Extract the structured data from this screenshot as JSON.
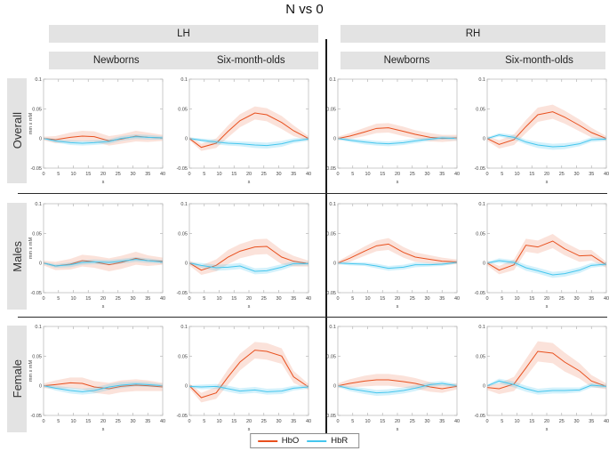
{
  "title": "N vs 0",
  "headers": {
    "lh": "LH",
    "rh": "RH",
    "newborns": "Newborns",
    "six_month": "Six-month-olds"
  },
  "rows": [
    {
      "label": "Overall"
    },
    {
      "label": "Males"
    },
    {
      "label": "Female"
    }
  ],
  "legend": [
    {
      "label": "HbO",
      "color": "#e8501e"
    },
    {
      "label": "HbR",
      "color": "#45c6ee"
    }
  ],
  "colors": {
    "header_bar": "#e3e3e3",
    "hbo_line": "#e8501e",
    "hbo_band": "rgba(235,110,70,0.20)",
    "hbr_line": "#45c6ee",
    "hbr_band": "rgba(80,200,240,0.25)",
    "axis": "#b5b5b5",
    "tick_text": "#444444",
    "divider": "#1a1a1a"
  },
  "chart_data": {
    "type": "line",
    "title": "N vs 0",
    "xlabel": "s",
    "ylabel": "mm x mM",
    "xlim": [
      0,
      40
    ],
    "ylim": [
      -0.05,
      0.1
    ],
    "xticks": [
      0,
      5,
      10,
      15,
      20,
      25,
      30,
      35,
      40
    ],
    "yticks": [
      0.1,
      0.05,
      0,
      -0.05
    ],
    "ytick_labels": [
      "0.1",
      "0.05",
      "0",
      "-0.05"
    ],
    "grid": false,
    "legend_position": "bottom-center",
    "series_names": [
      "HbO",
      "HbR"
    ],
    "x": [
      0,
      4,
      9,
      13,
      17,
      22,
      26,
      31,
      35,
      40
    ],
    "panels": [
      {
        "row": "Overall",
        "hemisphere": "LH",
        "group": "Newborns",
        "HbO": {
          "values": [
            0,
            -0.002,
            0.002,
            0.004,
            0.003,
            -0.004,
            -0.001,
            0.004,
            0.002,
            0.001
          ],
          "band": [
            0.003,
            0.006,
            0.008,
            0.009,
            0.009,
            0.008,
            0.008,
            0.009,
            0.008,
            0.005
          ]
        },
        "HbR": {
          "values": [
            0,
            -0.004,
            -0.007,
            -0.008,
            -0.007,
            -0.005,
            0.0,
            0.003,
            0.002,
            0.001
          ],
          "band": [
            0.002,
            0.003,
            0.004,
            0.004,
            0.004,
            0.004,
            0.004,
            0.004,
            0.004,
            0.003
          ]
        }
      },
      {
        "row": "Overall",
        "hemisphere": "LH",
        "group": "Six-month-olds",
        "HbO": {
          "values": [
            0,
            -0.015,
            -0.008,
            0.012,
            0.03,
            0.043,
            0.04,
            0.027,
            0.013,
            0.0
          ],
          "band": [
            0.003,
            0.006,
            0.008,
            0.01,
            0.011,
            0.011,
            0.011,
            0.011,
            0.009,
            0.004
          ]
        },
        "HbR": {
          "values": [
            0,
            -0.003,
            -0.006,
            -0.008,
            -0.009,
            -0.011,
            -0.012,
            -0.009,
            -0.004,
            -0.001
          ],
          "band": [
            0.002,
            0.003,
            0.004,
            0.004,
            0.004,
            0.005,
            0.005,
            0.005,
            0.004,
            0.003
          ]
        }
      },
      {
        "row": "Overall",
        "hemisphere": "RH",
        "group": "Newborns",
        "HbO": {
          "values": [
            0,
            0.004,
            0.011,
            0.017,
            0.018,
            0.012,
            0.007,
            0.002,
            0.0,
            0.001
          ],
          "band": [
            0.003,
            0.005,
            0.007,
            0.008,
            0.008,
            0.008,
            0.007,
            0.007,
            0.006,
            0.005
          ]
        },
        "HbR": {
          "values": [
            0,
            -0.003,
            -0.006,
            -0.008,
            -0.009,
            -0.007,
            -0.004,
            -0.001,
            0.001,
            0.0
          ],
          "band": [
            0.002,
            0.003,
            0.004,
            0.004,
            0.004,
            0.004,
            0.004,
            0.003,
            0.003,
            0.003
          ]
        }
      },
      {
        "row": "Overall",
        "hemisphere": "RH",
        "group": "Six-month-olds",
        "HbO": {
          "values": [
            0,
            -0.01,
            -0.002,
            0.02,
            0.04,
            0.045,
            0.036,
            0.022,
            0.01,
            0.0
          ],
          "band": [
            0.004,
            0.007,
            0.009,
            0.011,
            0.012,
            0.012,
            0.011,
            0.01,
            0.008,
            0.004
          ]
        },
        "HbR": {
          "values": [
            0,
            0.006,
            0.002,
            -0.006,
            -0.011,
            -0.014,
            -0.013,
            -0.009,
            -0.002,
            -0.001
          ],
          "band": [
            0.002,
            0.003,
            0.004,
            0.004,
            0.005,
            0.005,
            0.005,
            0.004,
            0.004,
            0.003
          ]
        }
      },
      {
        "row": "Males",
        "hemisphere": "LH",
        "group": "Newborns",
        "HbO": {
          "values": [
            0,
            -0.005,
            -0.002,
            0.004,
            0.002,
            -0.003,
            0.001,
            0.008,
            0.004,
            0.003
          ],
          "band": [
            0.004,
            0.007,
            0.009,
            0.01,
            0.01,
            0.011,
            0.011,
            0.011,
            0.009,
            0.006
          ]
        },
        "HbR": {
          "values": [
            0,
            -0.005,
            -0.003,
            0.001,
            0.002,
            0.001,
            0.003,
            0.006,
            0.004,
            0.002
          ],
          "band": [
            0.002,
            0.003,
            0.004,
            0.004,
            0.004,
            0.004,
            0.004,
            0.004,
            0.004,
            0.003
          ]
        }
      },
      {
        "row": "Males",
        "hemisphere": "LH",
        "group": "Six-month-olds",
        "HbO": {
          "values": [
            0,
            -0.012,
            -0.004,
            0.01,
            0.02,
            0.027,
            0.028,
            0.01,
            0.003,
            -0.001
          ],
          "band": [
            0.004,
            0.008,
            0.01,
            0.012,
            0.012,
            0.013,
            0.013,
            0.012,
            0.009,
            0.005
          ]
        },
        "HbR": {
          "values": [
            0,
            -0.004,
            -0.008,
            -0.007,
            -0.005,
            -0.014,
            -0.013,
            -0.007,
            -0.001,
            -0.001
          ],
          "band": [
            0.002,
            0.004,
            0.005,
            0.005,
            0.005,
            0.005,
            0.005,
            0.005,
            0.004,
            0.003
          ]
        }
      },
      {
        "row": "Males",
        "hemisphere": "RH",
        "group": "Newborns",
        "HbO": {
          "values": [
            0,
            0.008,
            0.02,
            0.029,
            0.032,
            0.018,
            0.01,
            0.006,
            0.003,
            0.002
          ],
          "band": [
            0.003,
            0.006,
            0.008,
            0.009,
            0.01,
            0.009,
            0.008,
            0.007,
            0.006,
            0.004
          ]
        },
        "HbR": {
          "values": [
            0,
            -0.001,
            -0.002,
            -0.005,
            -0.009,
            -0.007,
            -0.003,
            -0.003,
            -0.002,
            0.001
          ],
          "band": [
            0.002,
            0.003,
            0.003,
            0.004,
            0.004,
            0.004,
            0.004,
            0.003,
            0.003,
            0.002
          ]
        }
      },
      {
        "row": "Males",
        "hemisphere": "RH",
        "group": "Six-month-olds",
        "HbO": {
          "values": [
            0,
            -0.012,
            -0.003,
            0.03,
            0.027,
            0.037,
            0.024,
            0.012,
            0.013,
            -0.003
          ],
          "band": [
            0.004,
            0.007,
            0.009,
            0.011,
            0.011,
            0.012,
            0.011,
            0.01,
            0.009,
            0.005
          ]
        },
        "HbR": {
          "values": [
            0,
            0.004,
            0.001,
            -0.008,
            -0.013,
            -0.02,
            -0.018,
            -0.012,
            -0.004,
            -0.002
          ],
          "band": [
            0.002,
            0.004,
            0.004,
            0.005,
            0.005,
            0.005,
            0.005,
            0.005,
            0.004,
            0.003
          ]
        }
      },
      {
        "row": "Female",
        "hemisphere": "LH",
        "group": "Newborns",
        "HbO": {
          "values": [
            0,
            0.002,
            0.005,
            0.004,
            -0.002,
            -0.005,
            -0.001,
            0.001,
            0.0,
            -0.002
          ],
          "band": [
            0.004,
            0.007,
            0.009,
            0.01,
            0.01,
            0.01,
            0.01,
            0.01,
            0.009,
            0.007
          ]
        },
        "HbR": {
          "values": [
            0,
            -0.004,
            -0.008,
            -0.01,
            -0.008,
            -0.002,
            0.001,
            0.003,
            0.002,
            0.0
          ],
          "band": [
            0.002,
            0.004,
            0.005,
            0.005,
            0.005,
            0.005,
            0.005,
            0.004,
            0.004,
            0.003
          ]
        }
      },
      {
        "row": "Female",
        "hemisphere": "LH",
        "group": "Six-month-olds",
        "HbO": {
          "values": [
            0,
            -0.02,
            -0.012,
            0.015,
            0.04,
            0.06,
            0.058,
            0.05,
            0.015,
            -0.002
          ],
          "band": [
            0.004,
            0.008,
            0.01,
            0.013,
            0.014,
            0.014,
            0.014,
            0.013,
            0.01,
            0.005
          ]
        },
        "HbR": {
          "values": [
            -0.001,
            -0.002,
            -0.001,
            -0.005,
            -0.009,
            -0.007,
            -0.01,
            -0.009,
            -0.004,
            -0.002
          ],
          "band": [
            0.002,
            0.004,
            0.004,
            0.005,
            0.005,
            0.005,
            0.005,
            0.005,
            0.004,
            0.003
          ]
        }
      },
      {
        "row": "Female",
        "hemisphere": "RH",
        "group": "Newborns",
        "HbO": {
          "values": [
            0,
            0.004,
            0.008,
            0.01,
            0.01,
            0.007,
            0.004,
            -0.002,
            -0.005,
            -0.001
          ],
          "band": [
            0.004,
            0.007,
            0.009,
            0.01,
            0.01,
            0.01,
            0.009,
            0.008,
            0.007,
            0.005
          ]
        },
        "HbR": {
          "values": [
            0,
            -0.005,
            -0.009,
            -0.012,
            -0.011,
            -0.008,
            -0.004,
            0.002,
            0.004,
            0.0
          ],
          "band": [
            0.002,
            0.004,
            0.005,
            0.005,
            0.005,
            0.005,
            0.005,
            0.004,
            0.004,
            0.003
          ]
        }
      },
      {
        "row": "Female",
        "hemisphere": "RH",
        "group": "Six-month-olds",
        "HbO": {
          "values": [
            -0.003,
            -0.005,
            0.003,
            0.03,
            0.058,
            0.055,
            0.04,
            0.025,
            0.008,
            -0.001
          ],
          "band": [
            0.004,
            0.009,
            0.012,
            0.015,
            0.017,
            0.017,
            0.016,
            0.013,
            0.01,
            0.005
          ]
        },
        "HbR": {
          "values": [
            0,
            0.008,
            0.002,
            -0.005,
            -0.01,
            -0.008,
            -0.008,
            -0.007,
            0.001,
            -0.001
          ],
          "band": [
            0.002,
            0.004,
            0.005,
            0.005,
            0.005,
            0.005,
            0.005,
            0.004,
            0.004,
            0.003
          ]
        }
      }
    ]
  }
}
